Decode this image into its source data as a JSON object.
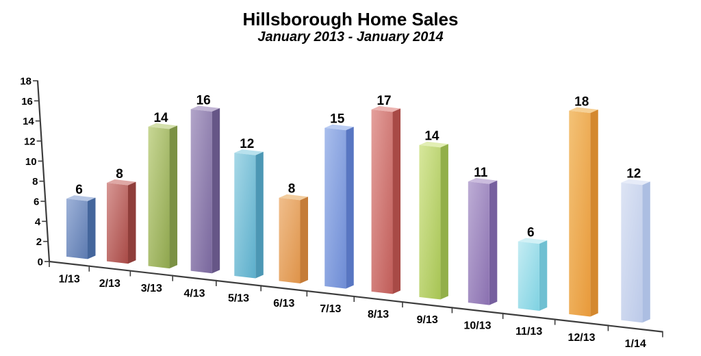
{
  "page": {
    "background": "#ffffff"
  },
  "header": {
    "title": "Hillsborough Home Sales",
    "subtitle": "January 2013 - January 2014"
  },
  "chart_data": {
    "type": "bar",
    "projection": "3d-perspective",
    "title": "Hillsborough Home Sales",
    "subtitle": "January 2013 - January 2014",
    "categories": [
      "1/13",
      "2/13",
      "3/13",
      "4/13",
      "5/13",
      "6/13",
      "7/13",
      "8/13",
      "9/13",
      "10/13",
      "11/13",
      "12/13",
      "1/14"
    ],
    "values": [
      6,
      8,
      14,
      16,
      12,
      8,
      15,
      17,
      14,
      11,
      6,
      18,
      12
    ],
    "value_labels_shown": true,
    "xlabel": "",
    "ylabel": "",
    "ylim": [
      0,
      18
    ],
    "yticks": [
      0,
      2,
      4,
      6,
      8,
      10,
      12,
      14,
      16,
      18
    ],
    "grid": false,
    "legend": "none",
    "axis_color": "#3d3d3d",
    "text_color": "#000000",
    "bar_colors": [
      {
        "name": "blue",
        "top": "#B6C6E4",
        "front_light": "#9EB2D8",
        "front_dark": "#5C7AB0",
        "side": "#44669C"
      },
      {
        "name": "brick-red",
        "top": "#DFA8A5",
        "front_light": "#D79794",
        "front_dark": "#A84A46",
        "side": "#8F3E3A"
      },
      {
        "name": "olive-green",
        "top": "#D4E0AC",
        "front_light": "#C8D795",
        "front_dark": "#8FA64E",
        "side": "#7B9144"
      },
      {
        "name": "purple",
        "top": "#C1B5D4",
        "front_light": "#B2A5C9",
        "front_dark": "#79679D",
        "side": "#665687"
      },
      {
        "name": "teal",
        "top": "#B8E1ED",
        "front_light": "#A6D8E7",
        "front_dark": "#5CAECB",
        "side": "#4C97B4"
      },
      {
        "name": "orange",
        "top": "#F2CD9F",
        "front_light": "#F0BE8C",
        "front_dark": "#DE9349",
        "side": "#C57C38"
      },
      {
        "name": "cornflower-blue",
        "top": "#BBCDF3",
        "front_light": "#A9BEEC",
        "front_dark": "#6E8CD5",
        "side": "#5876C2"
      },
      {
        "name": "coral-red",
        "top": "#ECB4B1",
        "front_light": "#E4A09C",
        "front_dark": "#C05D59",
        "side": "#A84A46"
      },
      {
        "name": "lime-green",
        "top": "#E2EEB4",
        "front_light": "#D7E79C",
        "front_dark": "#A7C454",
        "side": "#92AF49"
      },
      {
        "name": "lavender-purple",
        "top": "#CBBCDE",
        "front_light": "#BDADD5",
        "front_dark": "#8A70B0",
        "side": "#765F9E"
      },
      {
        "name": "aqua",
        "top": "#D2F1F6",
        "front_light": "#C4ECF3",
        "front_dark": "#7FD2E2",
        "side": "#6FC0D2"
      },
      {
        "name": "amber-orange",
        "top": "#F6D095",
        "front_light": "#F3C277",
        "front_dark": "#E89A3B",
        "side": "#D4882E"
      },
      {
        "name": "pale-periwinkle",
        "top": "#E6EBF8",
        "front_light": "#DDE4F4",
        "front_dark": "#BCCAE9",
        "side": "#ACBEE2"
      }
    ]
  }
}
